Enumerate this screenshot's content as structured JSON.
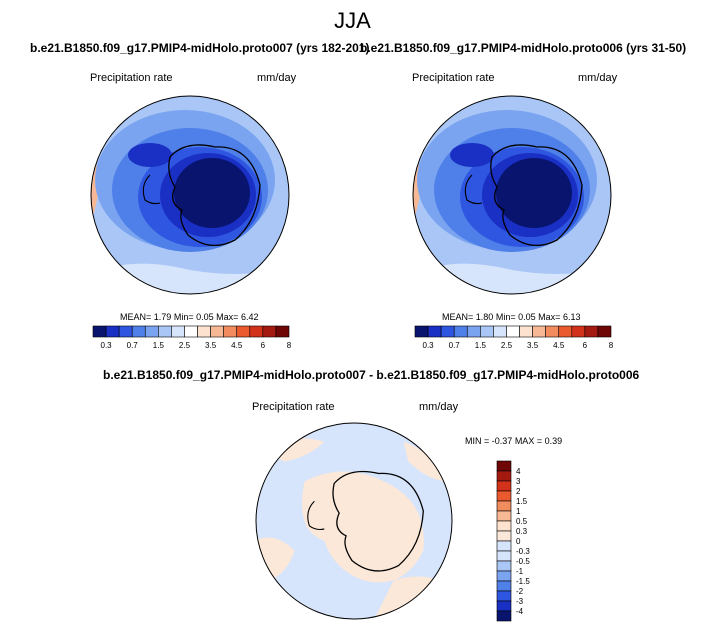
{
  "title": "JJA",
  "panels": [
    {
      "title": "b.e21.B1850.f09_g17.PMIP4-midHolo.proto007 (yrs 182-201)",
      "variable": "Precipitation rate",
      "units": "mm/day",
      "stats": {
        "mean_label": "MEAN=",
        "mean": "1.79",
        "min_label": "Min=",
        "min": "0.05",
        "max_label": "Max=",
        "max": "6.42"
      }
    },
    {
      "title": "b.e21.B1850.f09_g17.PMIP4-midHolo.proto006 (yrs 31-50)",
      "variable": "Precipitation rate",
      "units": "mm/day",
      "stats": {
        "mean_label": "MEAN=",
        "mean": "1.80",
        "min_label": "Min=",
        "min": "0.05",
        "max_label": "Max=",
        "max": "6.13"
      }
    },
    {
      "title": "b.e21.B1850.f09_g17.PMIP4-midHolo.proto007 - b.e21.B1850.f09_g17.PMIP4-midHolo.proto006",
      "variable": "Precipitation rate",
      "units": "mm/day",
      "stats": {
        "min_label": "MIN =",
        "min": "-0.37",
        "max_label": "MAX =",
        "max": "0.39"
      }
    }
  ],
  "colorbar_abs": {
    "tick_labels": [
      "0.3",
      "0.7",
      "1.5",
      "2.5",
      "3.5",
      "4.5",
      "6",
      "8"
    ],
    "colors": [
      "#08146e",
      "#1a2fc4",
      "#2f56e0",
      "#4f7fe8",
      "#7aa4ef",
      "#a9c6f6",
      "#d6e5fb",
      "#ffffff",
      "#fde3cf",
      "#f7b995",
      "#f28b5e",
      "#ea5a2e",
      "#d3321a",
      "#a51a10",
      "#6e0606"
    ]
  },
  "colorbar_diff": {
    "tick_labels": [
      "4",
      "3",
      "2",
      "1.5",
      "1",
      "0.5",
      "0.3",
      "0",
      "-0.3",
      "-0.5",
      "-1",
      "-1.5",
      "-2",
      "-3",
      "-4"
    ],
    "colors": [
      "#6e0606",
      "#a51a10",
      "#d3321a",
      "#ea5a2e",
      "#f28b5e",
      "#f7b995",
      "#fde3cf",
      "#fbe8d9",
      "#d6e5fb",
      "#d6e5fb",
      "#a9c6f6",
      "#7aa4ef",
      "#4f7fe8",
      "#2f56e0",
      "#1a2fc4",
      "#08146e"
    ]
  }
}
